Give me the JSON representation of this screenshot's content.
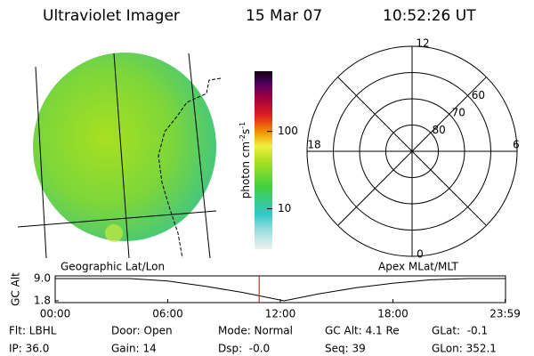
{
  "header": {
    "title": "Ultraviolet Imager",
    "date": "15 Mar 07",
    "time": "10:52:26 UT"
  },
  "image_caption": "Geographic Lat/Lon",
  "colorbar": {
    "label": "photon cm",
    "label_exp1": "-2",
    "label_mid": "s",
    "label_exp2": "-1",
    "scale": "log",
    "lim": [
      3,
      600
    ],
    "ticks": [
      100,
      10
    ]
  },
  "polar": {
    "caption": "Apex MLat/MLT",
    "hour_labels": [
      "12",
      "18",
      "6",
      "0"
    ],
    "lat_lim": [
      90,
      50
    ],
    "lat_rings": [
      80,
      70,
      60
    ]
  },
  "timeline": {
    "ylabel": "GC Alt",
    "ylim": [
      1.8,
      9.0
    ],
    "yticks": [
      {
        "value": 9,
        "label": "9.0"
      },
      1.8
    ],
    "xlim": [
      0,
      24
    ],
    "xticks": [
      {
        "value": 0,
        "label": "00:00"
      },
      {
        "value": 6,
        "label": "06:00"
      },
      {
        "value": 12,
        "label": "12:00"
      },
      {
        "value": 18,
        "label": "18:00"
      },
      {
        "value": 23.98,
        "label": "23:59"
      }
    ],
    "x": [
      0,
      4,
      6,
      8,
      10,
      12.2,
      14,
      16,
      18,
      20,
      22,
      23.98
    ],
    "values": [
      9,
      9,
      8.2,
      6.5,
      4.5,
      1.8,
      4,
      6,
      7.5,
      8.6,
      9,
      9
    ],
    "current_time": 10.87,
    "marker_color": "#cc0000"
  },
  "footer": {
    "rows": [
      [
        "Flt: LBHL",
        "Door: Open",
        "Mode: Normal",
        "GC Alt: 4.1 Re",
        "GLat:  -0.1"
      ],
      [
        "IP: 36.0",
        "Gain: 14",
        "Dsp:  -0.0",
        "Seq: 39",
        "GLon: 352.1"
      ]
    ]
  }
}
